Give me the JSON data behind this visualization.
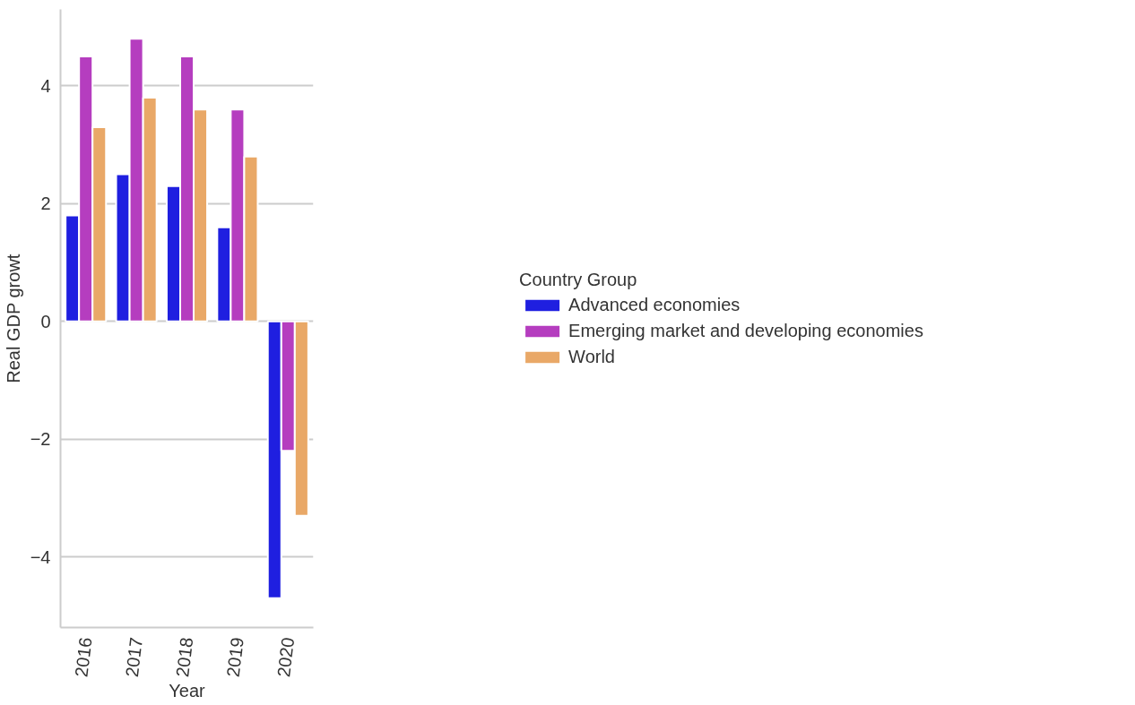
{
  "chart_data": {
    "type": "bar",
    "xlabel": "Year",
    "ylabel": "Real GDP growt",
    "legend_title": "Country Group",
    "categories": [
      "2016",
      "2017",
      "2018",
      "2019",
      "2020"
    ],
    "series": [
      {
        "name": "Advanced economies",
        "color": "#1f1fe0",
        "values": [
          1.8,
          2.5,
          2.3,
          1.6,
          -4.7
        ]
      },
      {
        "name": "Emerging market and developing economies",
        "color": "#b53dbf",
        "values": [
          4.5,
          4.8,
          4.5,
          3.6,
          -2.2
        ]
      },
      {
        "name": "World",
        "color": "#e9a867",
        "values": [
          3.3,
          3.8,
          3.6,
          2.8,
          -3.3
        ]
      }
    ],
    "ylim": [
      -5.2,
      5.3
    ],
    "yticks": [
      -4,
      -2,
      0,
      2,
      4
    ],
    "grid": "y",
    "legend": "right"
  }
}
